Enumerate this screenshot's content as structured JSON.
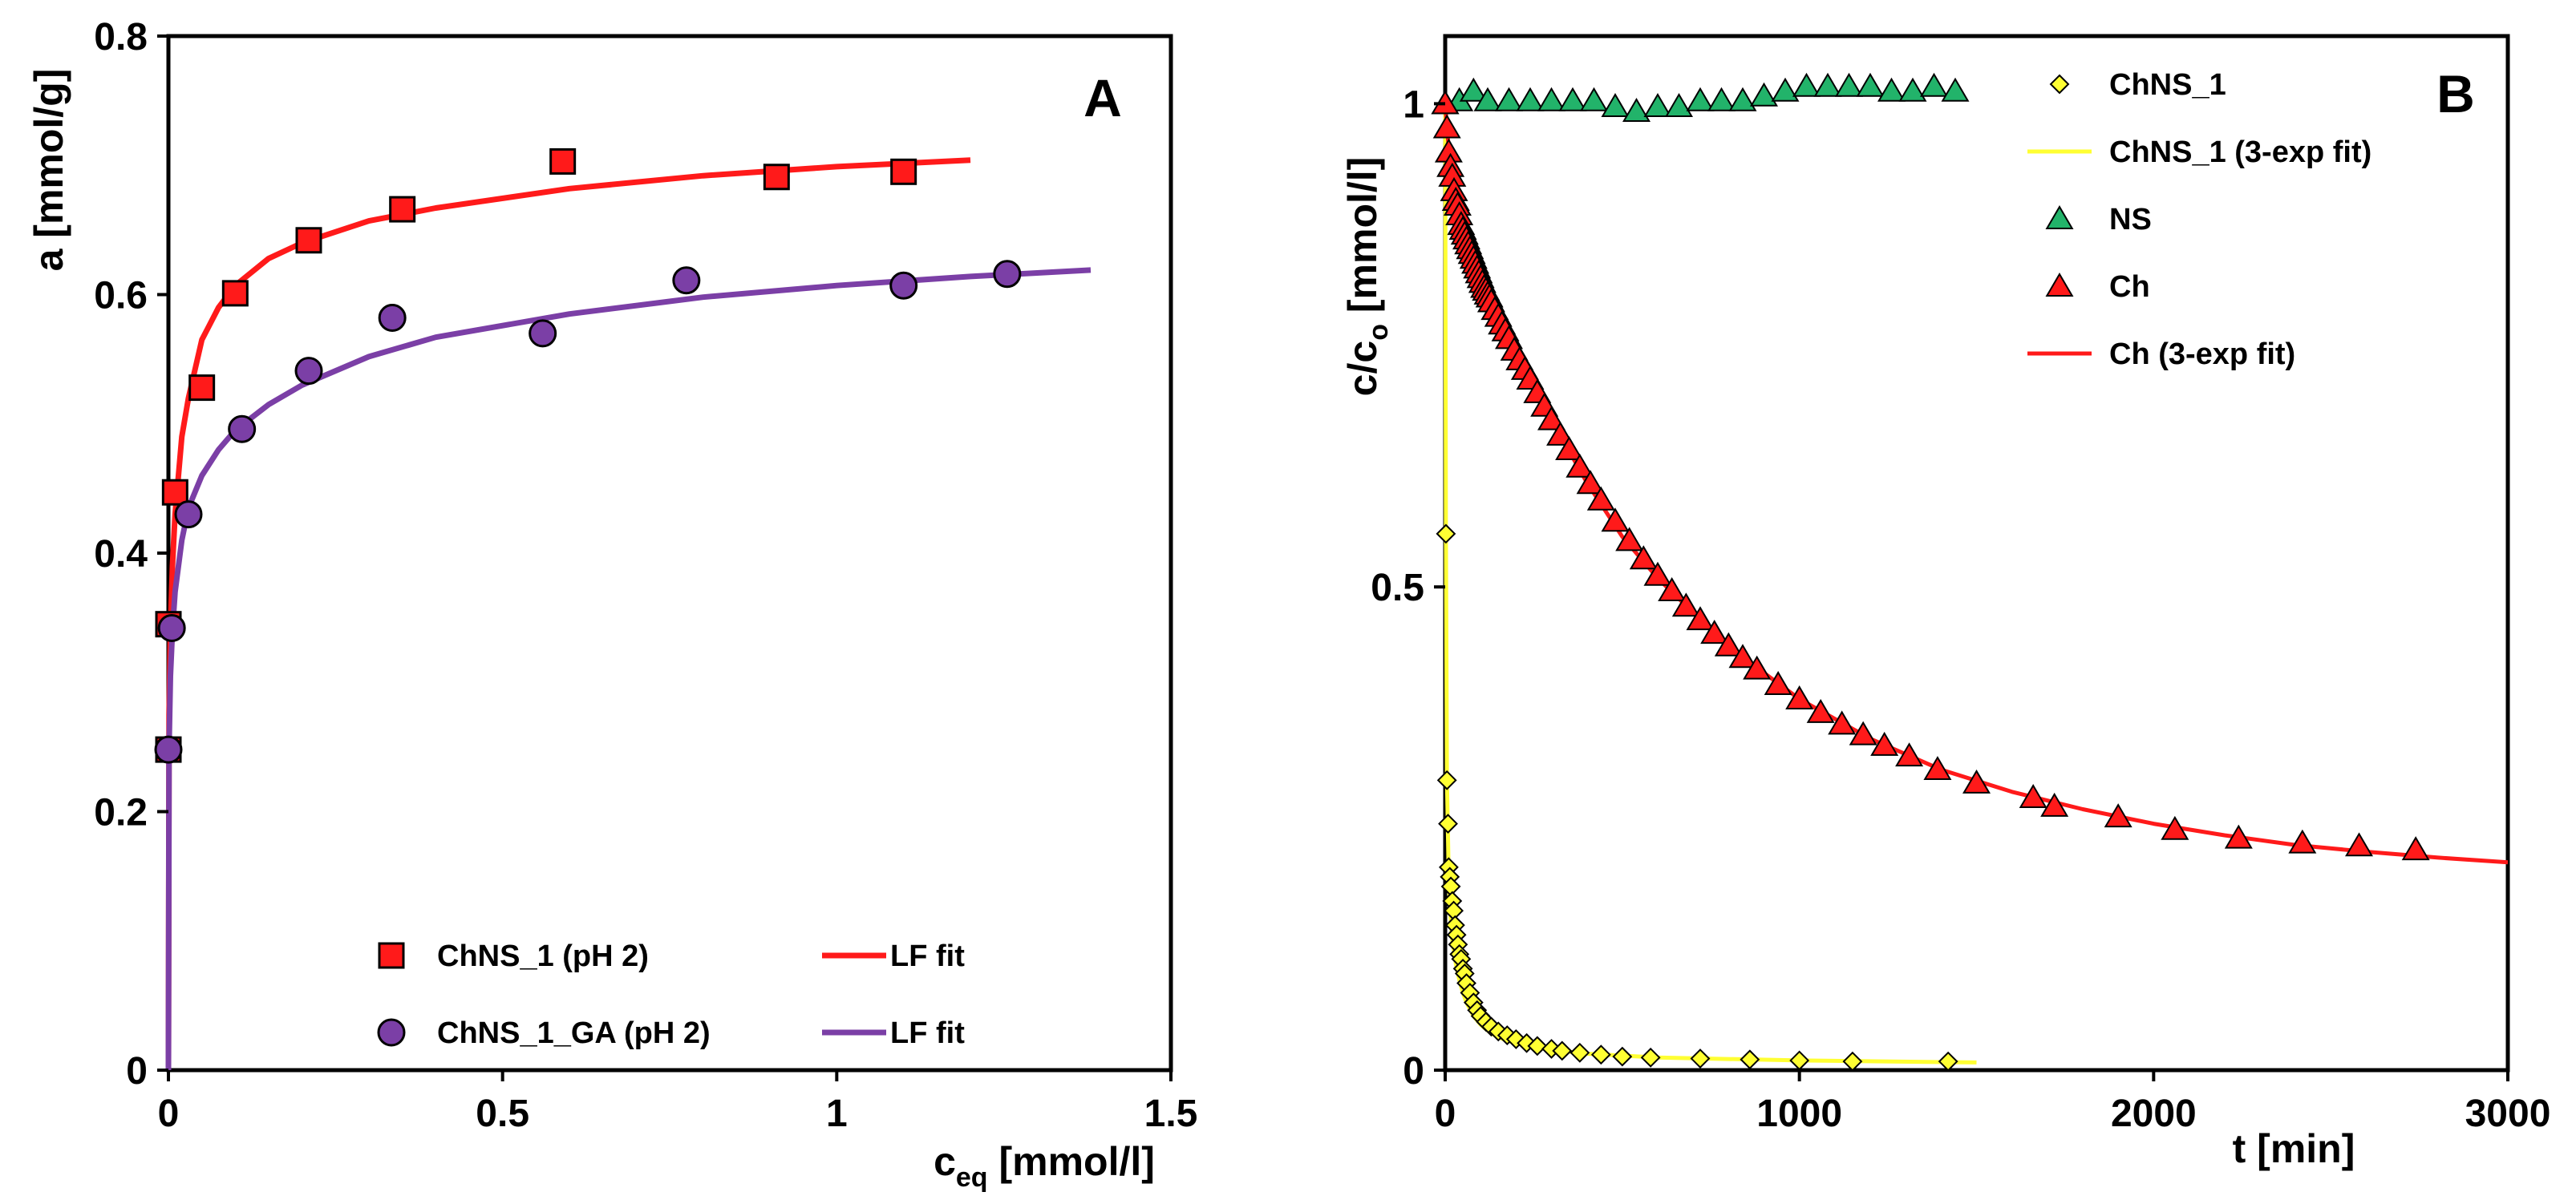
{
  "colors": {
    "red": "#ff1a1a",
    "purple": "#7b3fa6",
    "yellow": "#ffff33",
    "green": "#22b36a",
    "black": "#000000"
  },
  "chart_data": [
    {
      "type": "scatter",
      "panel_label": "A",
      "xlabel_main": "c",
      "xlabel_sub": "eq",
      "xlabel_rest": " [mmol/l]",
      "ylabel": "a [mmol/g]",
      "xlim": [
        0,
        1.5
      ],
      "ylim": [
        0,
        0.8
      ],
      "xticks": [
        {
          "v": 0,
          "label": "0"
        },
        {
          "v": 0.5,
          "label": "0.5"
        },
        {
          "v": 1,
          "label": "1"
        },
        {
          "v": 1.5,
          "label": "1.5"
        }
      ],
      "yticks": [
        {
          "v": 0,
          "label": "0"
        },
        {
          "v": 0.2,
          "label": "0.2"
        },
        {
          "v": 0.4,
          "label": "0.4"
        },
        {
          "v": 0.6,
          "label": "0.6"
        },
        {
          "v": 0.8,
          "label": "0.8"
        }
      ],
      "series": [
        {
          "name": "ChNS_1 (pH 2)",
          "kind": "markers",
          "marker": "square",
          "color": "#ff1a1a",
          "x": [
            0.0,
            0.0,
            0.01,
            0.05,
            0.1,
            0.21,
            0.35,
            0.59,
            0.91,
            1.1
          ],
          "y": [
            0.248,
            0.345,
            0.447,
            0.528,
            0.601,
            0.642,
            0.666,
            0.703,
            0.691,
            0.695
          ]
        },
        {
          "name": "LF fit",
          "kind": "line",
          "color": "#ff1a1a",
          "x": [
            0.0,
            0.001,
            0.003,
            0.006,
            0.01,
            0.02,
            0.03,
            0.05,
            0.075,
            0.1,
            0.15,
            0.2,
            0.3,
            0.4,
            0.6,
            0.8,
            1.0,
            1.2
          ],
          "y": [
            0.0,
            0.275,
            0.34,
            0.39,
            0.43,
            0.49,
            0.52,
            0.565,
            0.59,
            0.607,
            0.628,
            0.64,
            0.657,
            0.667,
            0.682,
            0.692,
            0.699,
            0.704
          ]
        },
        {
          "name": "ChNS_1_GA (pH 2)",
          "kind": "markers",
          "marker": "circle",
          "color": "#7b3fa6",
          "x": [
            0.0,
            0.005,
            0.03,
            0.11,
            0.21,
            0.335,
            0.56,
            0.775,
            1.1,
            1.255
          ],
          "y": [
            0.248,
            0.342,
            0.43,
            0.496,
            0.541,
            0.582,
            0.57,
            0.611,
            0.607,
            0.616
          ]
        },
        {
          "name": "LF fit",
          "kind": "line",
          "color": "#7b3fa6",
          "x": [
            0.0,
            0.001,
            0.003,
            0.006,
            0.01,
            0.02,
            0.03,
            0.05,
            0.075,
            0.1,
            0.15,
            0.2,
            0.3,
            0.4,
            0.6,
            0.8,
            1.0,
            1.2,
            1.38
          ],
          "y": [
            0.0,
            0.25,
            0.305,
            0.34,
            0.37,
            0.41,
            0.435,
            0.46,
            0.48,
            0.495,
            0.515,
            0.53,
            0.552,
            0.567,
            0.585,
            0.598,
            0.607,
            0.614,
            0.619
          ]
        }
      ],
      "legend": [
        {
          "label": "ChNS_1 (pH 2)",
          "marker": "square",
          "color": "#ff1a1a"
        },
        {
          "label": "LF fit",
          "marker": "line",
          "color": "#ff1a1a"
        },
        {
          "label": "ChNS_1_GA (pH 2)",
          "marker": "circle",
          "color": "#7b3fa6"
        },
        {
          "label": "LF fit",
          "marker": "line",
          "color": "#7b3fa6"
        }
      ]
    },
    {
      "type": "scatter",
      "panel_label": "B",
      "xlabel": "t [min]",
      "ylabel_main": "c/c",
      "ylabel_sub": "o",
      "ylabel_rest": " [mmol/l]",
      "xlim": [
        0,
        3000
      ],
      "ylim": [
        0,
        1.07
      ],
      "xticks": [
        {
          "v": 0,
          "label": "0"
        },
        {
          "v": 1000,
          "label": "1000"
        },
        {
          "v": 2000,
          "label": "2000"
        },
        {
          "v": 3000,
          "label": "3000"
        }
      ],
      "yticks": [
        {
          "v": 0,
          "label": "0"
        },
        {
          "v": 0.5,
          "label": "0.5"
        },
        {
          "v": 1,
          "label": "1"
        }
      ],
      "series": [
        {
          "name": "ChNS_1 (3-exp fit)",
          "kind": "line",
          "color": "#ffff33",
          "x": [
            0,
            2,
            5,
            10,
            15,
            20,
            30,
            40,
            50,
            60,
            80,
            100,
            130,
            170,
            220,
            300,
            400,
            600,
            1000,
            1500
          ],
          "y": [
            1.0,
            0.56,
            0.3,
            0.2,
            0.16,
            0.135,
            0.11,
            0.093,
            0.08,
            0.07,
            0.056,
            0.047,
            0.038,
            0.031,
            0.026,
            0.021,
            0.017,
            0.013,
            0.01,
            0.008
          ]
        },
        {
          "name": "ChNS_1",
          "kind": "markers",
          "marker": "diamond",
          "color": "#ffff33",
          "x": [
            2,
            5,
            8,
            10,
            13,
            16,
            20,
            24,
            28,
            32,
            36,
            40,
            45,
            50,
            55,
            60,
            70,
            80,
            90,
            100,
            115,
            130,
            150,
            175,
            200,
            230,
            260,
            300,
            330,
            380,
            440,
            500,
            580,
            720,
            860,
            1000,
            1150,
            1420
          ],
          "y": [
            0.555,
            0.3,
            0.255,
            0.21,
            0.2,
            0.19,
            0.175,
            0.165,
            0.15,
            0.14,
            0.13,
            0.12,
            0.115,
            0.105,
            0.1,
            0.09,
            0.08,
            0.07,
            0.062,
            0.056,
            0.05,
            0.045,
            0.04,
            0.036,
            0.032,
            0.028,
            0.025,
            0.022,
            0.02,
            0.018,
            0.016,
            0.014,
            0.013,
            0.012,
            0.011,
            0.01,
            0.009,
            0.009
          ]
        },
        {
          "name": "NS",
          "kind": "markers",
          "marker": "triangle",
          "color": "#22b36a",
          "x": [
            0,
            40,
            80,
            120,
            180,
            240,
            300,
            360,
            420,
            480,
            540,
            600,
            660,
            720,
            780,
            840,
            900,
            960,
            1020,
            1080,
            1140,
            1200,
            1260,
            1320,
            1380,
            1440
          ],
          "y": [
            1.0,
            1.003,
            1.013,
            1.003,
            1.003,
            1.003,
            1.003,
            1.003,
            1.003,
            0.997,
            0.992,
            0.997,
            0.997,
            1.003,
            1.003,
            1.003,
            1.008,
            1.013,
            1.018,
            1.018,
            1.018,
            1.018,
            1.013,
            1.013,
            1.018,
            1.013
          ]
        },
        {
          "name": "Ch",
          "kind": "markers",
          "marker": "triangle",
          "color": "#ff1a1a",
          "x": [
            0,
            5,
            10,
            15,
            20,
            25,
            30,
            35,
            40,
            45,
            50,
            55,
            60,
            65,
            70,
            75,
            80,
            85,
            90,
            95,
            100,
            105,
            110,
            115,
            120,
            125,
            130,
            140,
            150,
            160,
            170,
            180,
            195,
            210,
            225,
            240,
            260,
            280,
            300,
            325,
            350,
            380,
            410,
            440,
            480,
            520,
            560,
            600,
            640,
            680,
            720,
            760,
            800,
            840,
            880,
            940,
            1000,
            1060,
            1120,
            1180,
            1240,
            1310,
            1390,
            1500,
            1660,
            1720,
            1900,
            2060,
            2240,
            2420,
            2580,
            2740
          ],
          "y": [
            1.0,
            0.975,
            0.95,
            0.935,
            0.925,
            0.91,
            0.9,
            0.895,
            0.885,
            0.875,
            0.87,
            0.865,
            0.86,
            0.855,
            0.85,
            0.845,
            0.84,
            0.835,
            0.83,
            0.825,
            0.82,
            0.815,
            0.81,
            0.807,
            0.803,
            0.8,
            0.795,
            0.787,
            0.78,
            0.772,
            0.765,
            0.757,
            0.745,
            0.735,
            0.725,
            0.715,
            0.701,
            0.687,
            0.673,
            0.657,
            0.642,
            0.624,
            0.607,
            0.59,
            0.568,
            0.548,
            0.529,
            0.512,
            0.496,
            0.48,
            0.466,
            0.452,
            0.439,
            0.427,
            0.415,
            0.399,
            0.384,
            0.37,
            0.358,
            0.347,
            0.336,
            0.325,
            0.311,
            0.297,
            0.282,
            0.273,
            0.262,
            0.249,
            0.24,
            0.235,
            0.232,
            0.228
          ]
        },
        {
          "name": "Ch (3-exp fit)",
          "kind": "line",
          "color": "#ff1a1a",
          "x": [
            0,
            5,
            10,
            20,
            30,
            50,
            75,
            100,
            150,
            200,
            300,
            400,
            500,
            600,
            800,
            1000,
            1200,
            1400,
            1600,
            1800,
            2000,
            2200,
            2400,
            2600,
            2800,
            3000
          ],
          "y": [
            1.0,
            0.975,
            0.955,
            0.925,
            0.905,
            0.872,
            0.843,
            0.818,
            0.779,
            0.744,
            0.673,
            0.608,
            0.552,
            0.509,
            0.438,
            0.384,
            0.343,
            0.311,
            0.288,
            0.27,
            0.255,
            0.243,
            0.233,
            0.226,
            0.22,
            0.215
          ]
        }
      ],
      "legend": [
        {
          "label": "ChNS_1",
          "marker": "diamond",
          "color": "#ffff33"
        },
        {
          "label": "ChNS_1 (3-exp fit)",
          "marker": "line",
          "color": "#ffff33"
        },
        {
          "label": "NS",
          "marker": "triangle",
          "color": "#22b36a"
        },
        {
          "label": "Ch",
          "marker": "triangle",
          "color": "#ff1a1a"
        },
        {
          "label": "Ch (3-exp fit)",
          "marker": "line",
          "color": "#ff1a1a"
        }
      ]
    }
  ]
}
